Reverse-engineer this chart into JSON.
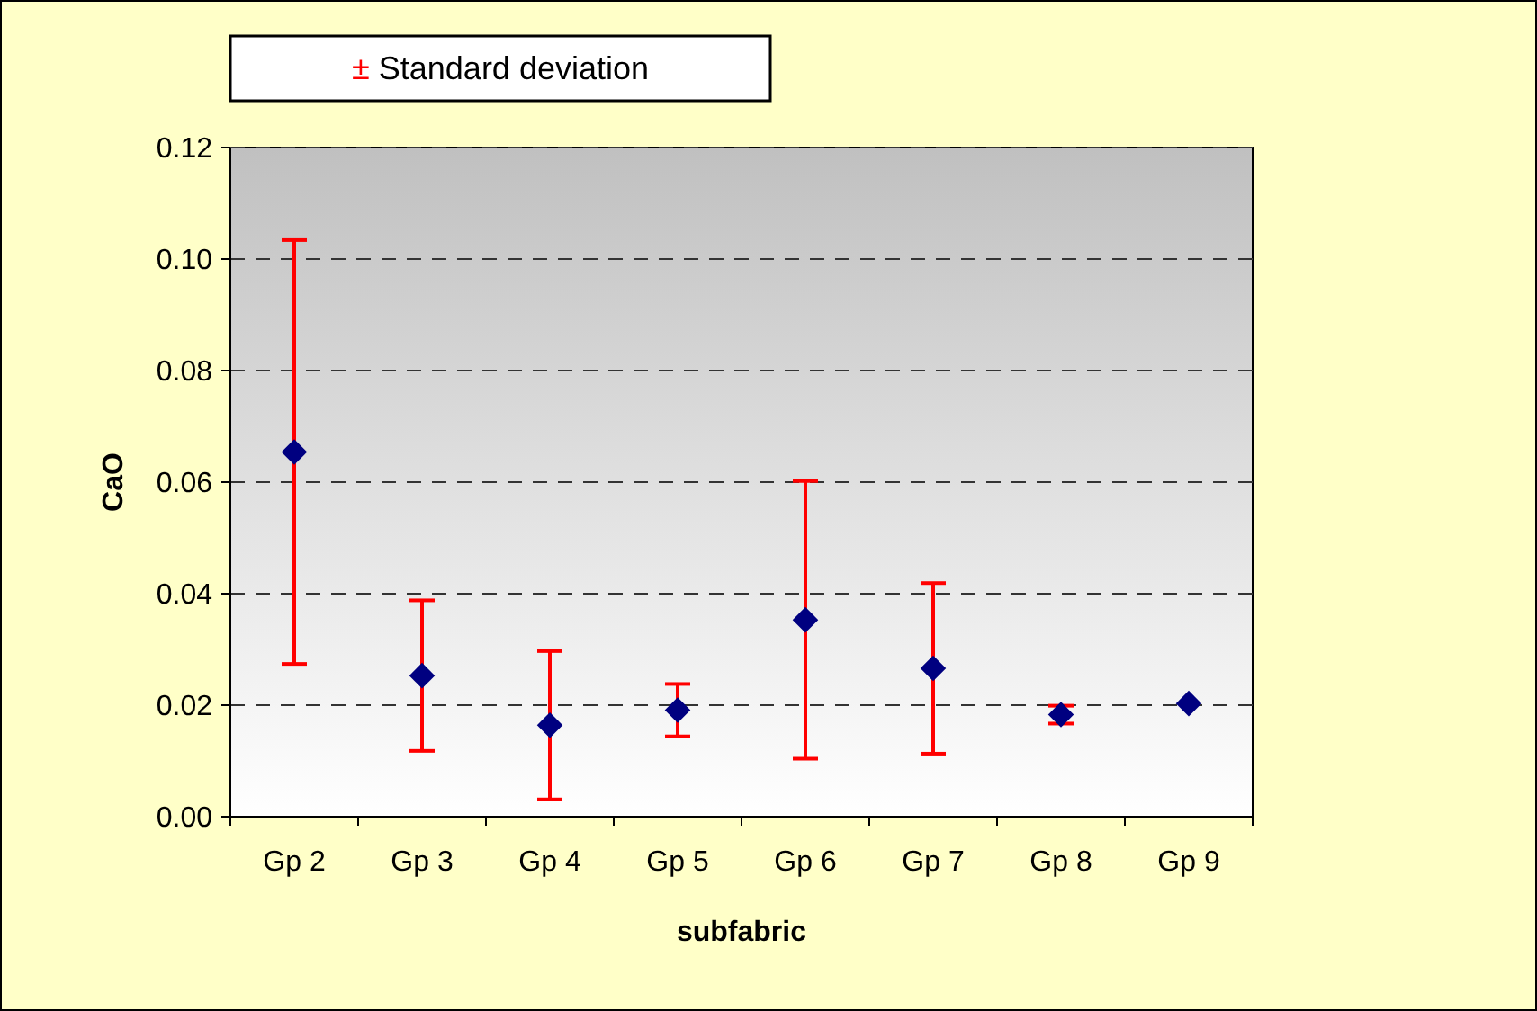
{
  "chart_data": {
    "type": "scatter",
    "xlabel": "subfabric",
    "ylabel": "CaO",
    "categories": [
      "Gp 2",
      "Gp 3",
      "Gp 4",
      "Gp 5",
      "Gp 6",
      "Gp 7",
      "Gp 8",
      "Gp 9"
    ],
    "series": [
      {
        "name": "± Standard deviation",
        "color": "#000080",
        "values": [
          0.0654,
          0.0253,
          0.0164,
          0.0191,
          0.0353,
          0.0266,
          0.0183,
          0.0203
        ],
        "errors": [
          0.038,
          0.0135,
          0.0133,
          0.0047,
          0.0249,
          0.0153,
          0.0016,
          null
        ]
      }
    ],
    "ylim": [
      0,
      0.12
    ],
    "yticks": [
      {
        "value": 0,
        "label": "0.00"
      },
      {
        "value": 0.02,
        "label": "0.02"
      },
      {
        "value": 0.04,
        "label": "0.04"
      },
      {
        "value": 0.06,
        "label": "0.06"
      },
      {
        "value": 0.08,
        "label": "0.08"
      },
      {
        "value": 0.1,
        "label": "0.10"
      },
      {
        "value": 0.12,
        "label": "0.12"
      }
    ],
    "grid": "y",
    "legend": "top left",
    "marker": "diamond"
  }
}
